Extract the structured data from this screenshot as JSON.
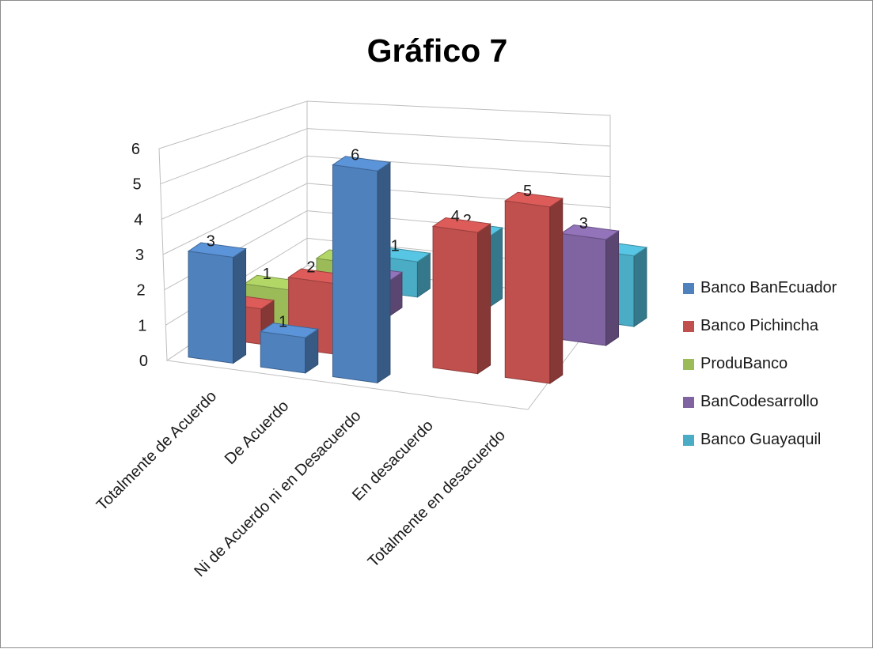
{
  "chart_data": {
    "type": "bar",
    "variant": "3d-clustered-column",
    "title": "Gráfico 7",
    "categories": [
      "Totalmente de Acuerdo",
      "De Acuerdo",
      "Ni de Acuerdo ni en Desacuerdo",
      "En desacuerdo",
      "Totalmente en desacuerdo"
    ],
    "series": [
      {
        "name": "Banco BanEcuador",
        "color": "#4f81bd",
        "values": [
          3,
          1,
          6,
          null,
          null
        ]
      },
      {
        "name": "Banco Pichincha",
        "color": "#c0504d",
        "values": [
          1,
          2,
          null,
          4,
          5
        ]
      },
      {
        "name": "ProduBanco",
        "color": "#9bbb59",
        "values": [
          1,
          2,
          null,
          null,
          null
        ]
      },
      {
        "name": "BanCodesarrollo",
        "color": "#8064a2",
        "values": [
          null,
          1,
          null,
          null,
          3
        ]
      },
      {
        "name": "Banco Guayaquil",
        "color": "#4bacc6",
        "values": [
          null,
          1,
          2,
          1,
          2
        ]
      }
    ],
    "ylim": [
      0,
      6
    ],
    "yticks": [
      "0",
      "1",
      "2",
      "3",
      "4",
      "5",
      "6"
    ],
    "grid": true,
    "legend_position": "right"
  }
}
